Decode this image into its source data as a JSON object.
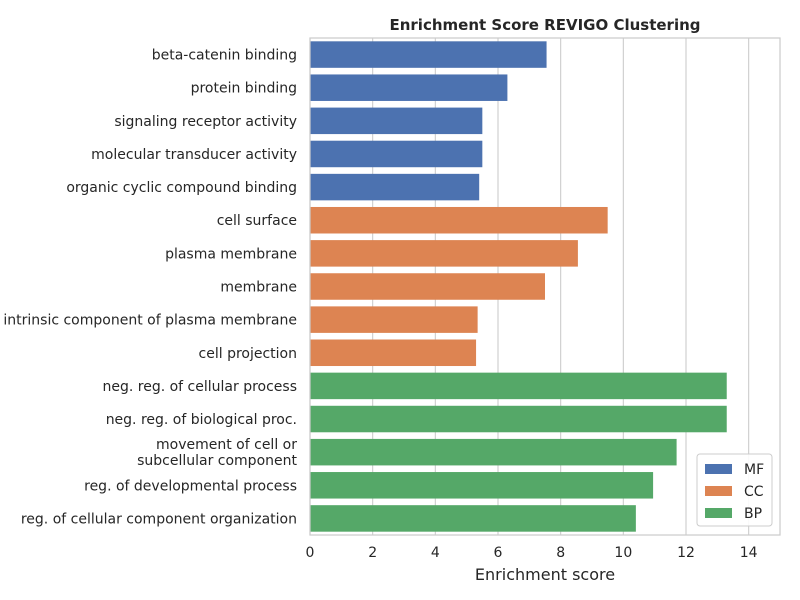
{
  "chart_data": {
    "type": "bar",
    "orientation": "horizontal",
    "title": "Enrichment Score REVIGO Clustering",
    "xlabel": "Enrichment score",
    "ylabel": "",
    "xlim": [
      0,
      15
    ],
    "xticks": [
      0,
      2,
      4,
      6,
      8,
      10,
      12,
      14
    ],
    "grid": "vertical",
    "legend_position": "bottom-right",
    "series": [
      {
        "name": "MF",
        "color": "#4c72b0"
      },
      {
        "name": "CC",
        "color": "#dd8452"
      },
      {
        "name": "BP",
        "color": "#55a868"
      }
    ],
    "bars": [
      {
        "label": [
          "beta-catenin binding"
        ],
        "value": 7.55,
        "group": "MF"
      },
      {
        "label": [
          "protein binding"
        ],
        "value": 6.3,
        "group": "MF"
      },
      {
        "label": [
          "signaling receptor activity"
        ],
        "value": 5.5,
        "group": "MF"
      },
      {
        "label": [
          "molecular transducer activity"
        ],
        "value": 5.5,
        "group": "MF"
      },
      {
        "label": [
          "organic cyclic compound binding"
        ],
        "value": 5.4,
        "group": "MF"
      },
      {
        "label": [
          "cell surface"
        ],
        "value": 9.5,
        "group": "CC"
      },
      {
        "label": [
          "plasma membrane"
        ],
        "value": 8.55,
        "group": "CC"
      },
      {
        "label": [
          "membrane"
        ],
        "value": 7.5,
        "group": "CC"
      },
      {
        "label": [
          "intrinsic component of plasma membrane"
        ],
        "value": 5.35,
        "group": "CC"
      },
      {
        "label": [
          "cell projection"
        ],
        "value": 5.3,
        "group": "CC"
      },
      {
        "label": [
          "neg. reg. of cellular process"
        ],
        "value": 13.3,
        "group": "BP"
      },
      {
        "label": [
          "neg. reg. of biological proc."
        ],
        "value": 13.3,
        "group": "BP"
      },
      {
        "label": [
          "movement of cell or",
          "subcellular component"
        ],
        "value": 11.7,
        "group": "BP"
      },
      {
        "label": [
          "reg. of developmental process"
        ],
        "value": 10.95,
        "group": "BP"
      },
      {
        "label": [
          "reg. of cellular component organization"
        ],
        "value": 10.4,
        "group": "BP"
      }
    ]
  }
}
